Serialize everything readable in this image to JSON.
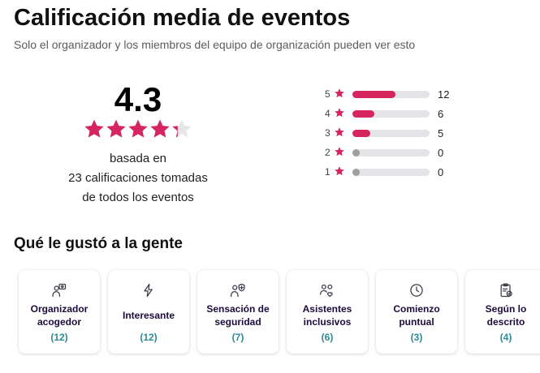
{
  "header": {
    "title": "Calificación media de eventos",
    "subtitle": "Solo el organizador y los miembros del equipo de organización pueden ver esto"
  },
  "summary": {
    "average": "4.3",
    "rating_fraction": 0.86,
    "based_line1": "basada en",
    "based_line2": "23 calificaciones tomadas",
    "based_line3": "de todos los eventos"
  },
  "distribution": [
    {
      "stars": "5",
      "count": "12"
    },
    {
      "stars": "4",
      "count": "6"
    },
    {
      "stars": "3",
      "count": "5"
    },
    {
      "stars": "2",
      "count": "0"
    },
    {
      "stars": "1",
      "count": "0"
    }
  ],
  "liked": {
    "title": "Qué le gustó a la gente",
    "cards": [
      {
        "label": "Organizador acogedor",
        "count": "(12)",
        "icon": "heart-chat-person-icon"
      },
      {
        "label": "Interesante",
        "count": "(12)",
        "icon": "lightning-icon"
      },
      {
        "label": "Sensación de seguridad",
        "count": "(7)",
        "icon": "shield-person-icon"
      },
      {
        "label": "Asistentes inclusivos",
        "count": "(6)",
        "icon": "people-heart-icon"
      },
      {
        "label": "Comienzo puntual",
        "count": "(3)",
        "icon": "clock-icon"
      },
      {
        "label": "Según lo descrito",
        "count": "(4)",
        "icon": "clipboard-check-icon"
      }
    ]
  },
  "colors": {
    "accent": "#d6245f",
    "count_text": "#2f8a96",
    "empty_bar": "#e4e4e8",
    "empty_dot": "#9e9e9e"
  }
}
